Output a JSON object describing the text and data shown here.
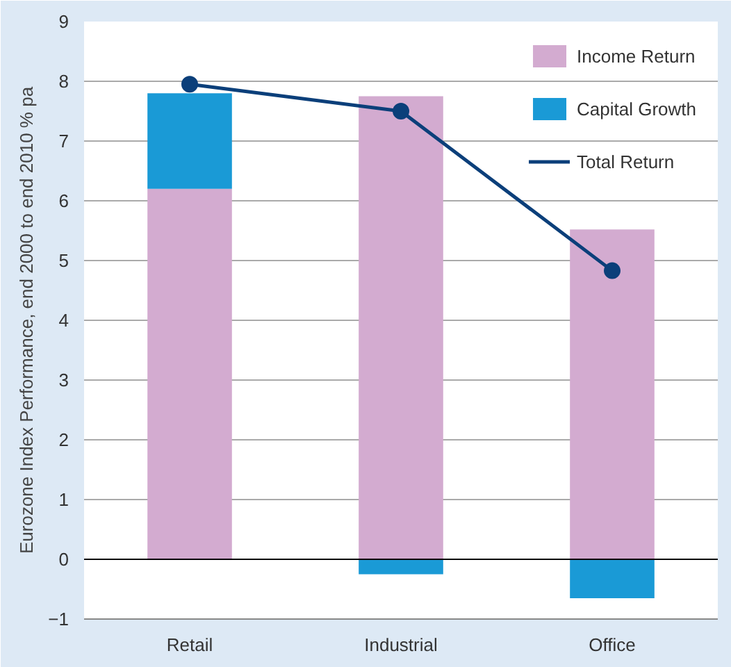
{
  "chart_data": {
    "type": "bar",
    "stacked": true,
    "categories": [
      "Retail",
      "Industrial",
      "Office"
    ],
    "ylabel": "Eurozone Index Performance, end 2000 to end 2010 % pa",
    "ylim": [
      -1,
      9
    ],
    "yticks": [
      -1,
      0,
      1,
      2,
      3,
      4,
      5,
      6,
      7,
      8,
      9
    ],
    "grid": "y",
    "legend": "top right",
    "marker": "circle",
    "line_style": "solid",
    "series": [
      {
        "name": "Income Return",
        "color": "#d3abd0",
        "values": [
          6.2,
          7.75,
          5.52
        ]
      },
      {
        "name": "Capital Growth",
        "color": "#1a9ad6",
        "values": [
          1.6,
          -0.25,
          -0.65
        ]
      },
      {
        "name": "Total Return",
        "type": "line",
        "color": "#0b3f7a",
        "values": [
          7.95,
          7.5,
          4.83
        ]
      }
    ]
  }
}
